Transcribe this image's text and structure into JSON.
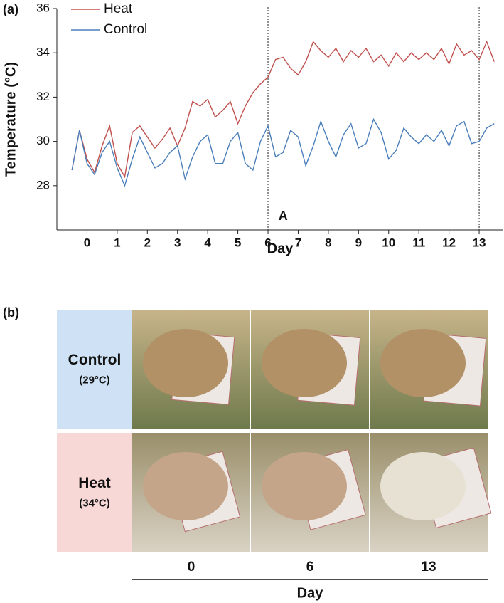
{
  "chart_data": {
    "type": "line",
    "label": "(a)",
    "xlabel": "Day",
    "ylabel": "Temperature (°C)",
    "xlim": [
      -1,
      13.8
    ],
    "ylim": [
      26,
      36
    ],
    "xticks": [
      0,
      1,
      2,
      3,
      4,
      5,
      6,
      7,
      8,
      9,
      10,
      11,
      12,
      13
    ],
    "yticks": [
      28,
      30,
      32,
      34,
      36
    ],
    "legend": "top-left",
    "vlines": [
      6,
      13
    ],
    "annotations": [
      {
        "text": "A",
        "x": 6.5,
        "y": 26.6
      }
    ],
    "x": [
      -0.5,
      -0.25,
      0,
      0.25,
      0.5,
      0.75,
      1,
      1.25,
      1.5,
      1.75,
      2,
      2.25,
      2.5,
      2.75,
      3,
      3.25,
      3.5,
      3.75,
      4,
      4.25,
      4.5,
      4.75,
      5,
      5.25,
      5.5,
      5.75,
      6,
      6.25,
      6.5,
      6.75,
      7,
      7.25,
      7.5,
      7.75,
      8,
      8.25,
      8.5,
      8.75,
      9,
      9.25,
      9.5,
      9.75,
      10,
      10.25,
      10.5,
      10.75,
      11,
      11.25,
      11.5,
      11.75,
      12,
      12.25,
      12.5,
      12.75,
      13,
      13.25,
      13.5
    ],
    "series": [
      {
        "name": "Heat",
        "color": "#c0504d",
        "values": [
          28.7,
          30.5,
          29.2,
          28.6,
          29.8,
          30.7,
          29.0,
          28.4,
          30.4,
          30.7,
          30.2,
          29.7,
          30.1,
          30.6,
          29.8,
          30.6,
          31.8,
          31.6,
          31.9,
          31.1,
          31.4,
          31.8,
          30.8,
          31.6,
          32.2,
          32.6,
          32.9,
          33.7,
          33.8,
          33.3,
          33.0,
          33.6,
          34.5,
          34.1,
          33.8,
          34.2,
          33.6,
          34.1,
          33.8,
          34.2,
          33.6,
          33.9,
          33.4,
          34.0,
          33.6,
          34.0,
          33.7,
          34.0,
          33.7,
          34.2,
          33.5,
          34.4,
          33.9,
          34.1,
          33.7,
          34.5,
          33.6
        ]
      },
      {
        "name": "Control",
        "color": "#4a7ebb",
        "values": [
          28.7,
          30.5,
          29.0,
          28.5,
          29.5,
          30.0,
          28.8,
          28.0,
          29.2,
          30.2,
          29.5,
          28.8,
          29.0,
          29.5,
          29.8,
          28.3,
          29.3,
          30.0,
          30.3,
          29.0,
          29.0,
          30.0,
          30.4,
          29.0,
          28.7,
          30.0,
          30.7,
          29.3,
          29.5,
          30.5,
          30.2,
          28.9,
          29.8,
          30.9,
          30.0,
          29.3,
          30.3,
          30.8,
          29.7,
          29.9,
          31.0,
          30.4,
          29.2,
          29.6,
          30.6,
          30.2,
          29.9,
          30.3,
          30.0,
          30.5,
          29.8,
          30.7,
          30.9,
          29.9,
          30.0,
          30.6,
          30.8
        ]
      }
    ]
  },
  "panel_b": {
    "label": "(b)",
    "rows": [
      {
        "name": "Control",
        "temp": "(29°C)"
      },
      {
        "name": "Heat",
        "temp": "(34°C)"
      }
    ],
    "columns": [
      "0",
      "6",
      "13"
    ],
    "xlabel": "Day"
  }
}
